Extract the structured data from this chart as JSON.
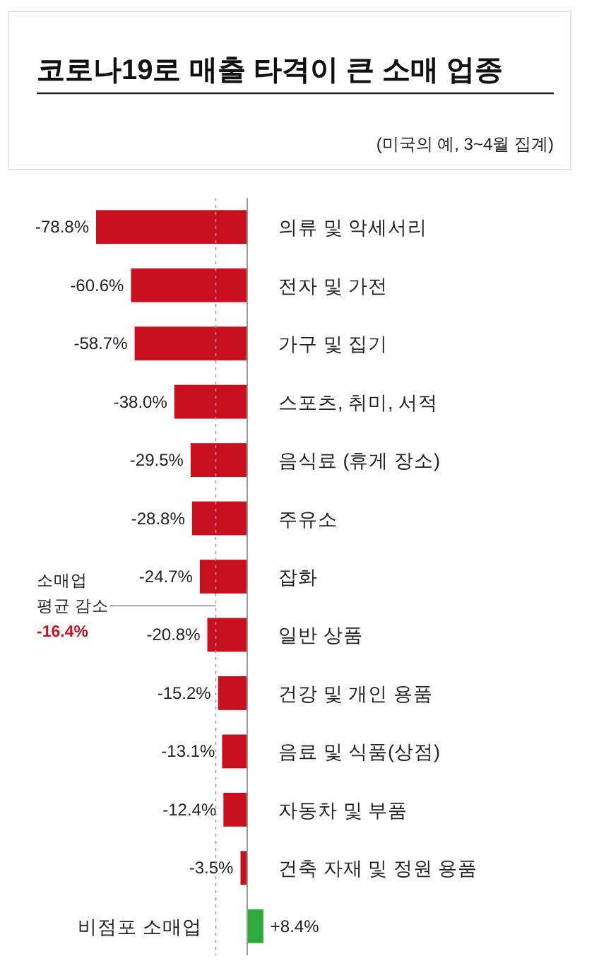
{
  "chart_data": {
    "type": "bar",
    "orientation": "horizontal",
    "title": "코로나19로 매출 타격이 큰 소매 업종",
    "subtitle": "(미국의 예, 3~4월 집계)",
    "categories": [
      "의류 및 악세서리",
      "전자 및 가전",
      "가구 및 집기",
      "스포츠, 취미, 서적",
      "음식료 (휴게 장소)",
      "주유소",
      "잡화",
      "일반 상품",
      "건강 및 개인 용품",
      "음료 및 식품(상점)",
      "자동차 및 부품",
      "건축 자재 및 정원 용품",
      "비점포 소매업"
    ],
    "values": [
      -78.8,
      -60.6,
      -58.7,
      -38.0,
      -29.5,
      -28.8,
      -24.7,
      -20.8,
      -15.2,
      -13.1,
      -12.4,
      -3.5,
      8.4
    ],
    "value_labels": [
      "-78.8%",
      "-60.6%",
      "-58.7%",
      "-38.0%",
      "-29.5%",
      "-28.8%",
      "-24.7%",
      "-20.8%",
      "-15.2%",
      "-13.1%",
      "-12.4%",
      "-3.5%",
      "+8.4%"
    ],
    "colors": [
      "#c8101e",
      "#c8101e",
      "#c8101e",
      "#c8101e",
      "#c8101e",
      "#c8101e",
      "#c8101e",
      "#c8101e",
      "#c8101e",
      "#c8101e",
      "#c8101e",
      "#c8101e",
      "#2eaa3c"
    ],
    "ref_lines": [
      {
        "axis": "x",
        "value": -16.4,
        "label": "소매업\n평균 감소\n-16.4%"
      }
    ]
  }
}
